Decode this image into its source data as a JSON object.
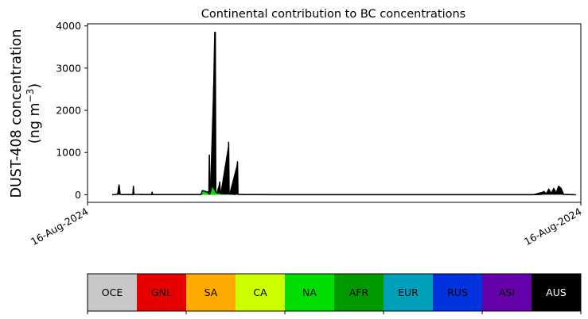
{
  "chart_data": {
    "type": "area",
    "title": "Continental contribution to BC concentrations",
    "ylabel_line1": "DUST-408 concentration",
    "ylabel_line2": "(ng m",
    "ylabel_sup": "−3",
    "ylabel_close": ")",
    "ylim": [
      -180,
      4050
    ],
    "yticks": [
      0,
      1000,
      2000,
      3000,
      4000
    ],
    "ytick_labels": [
      "0",
      "1000",
      "2000",
      "3000",
      "4000"
    ],
    "xtick_labels": [
      "16-Aug-2024",
      "16-Aug-2024"
    ],
    "grid": false,
    "x_range": [
      0,
      1
    ],
    "total_series": [
      [
        0.05,
        0
      ],
      [
        0.06,
        8
      ],
      [
        0.062,
        60
      ],
      [
        0.063,
        180
      ],
      [
        0.064,
        230
      ],
      [
        0.065,
        120
      ],
      [
        0.066,
        10
      ],
      [
        0.07,
        5
      ],
      [
        0.092,
        5
      ],
      [
        0.093,
        200
      ],
      [
        0.094,
        10
      ],
      [
        0.12,
        5
      ],
      [
        0.13,
        5
      ],
      [
        0.131,
        60
      ],
      [
        0.132,
        5
      ],
      [
        0.2,
        5
      ],
      [
        0.23,
        5
      ],
      [
        0.233,
        100
      ],
      [
        0.245,
        60
      ],
      [
        0.246,
        20
      ],
      [
        0.247,
        940
      ],
      [
        0.248,
        20
      ],
      [
        0.252,
        200
      ],
      [
        0.258,
        3850
      ],
      [
        0.259,
        3850
      ],
      [
        0.26,
        60
      ],
      [
        0.265,
        40
      ],
      [
        0.268,
        300
      ],
      [
        0.269,
        30
      ],
      [
        0.28,
        20
      ],
      [
        0.285,
        30
      ],
      [
        0.286,
        1240
      ],
      [
        0.287,
        20
      ],
      [
        0.3,
        10
      ],
      [
        0.304,
        780
      ],
      [
        0.305,
        10
      ],
      [
        0.32,
        5
      ],
      [
        0.35,
        5
      ],
      [
        0.38,
        3
      ],
      [
        0.9,
        3
      ],
      [
        0.92,
        10
      ],
      [
        0.925,
        80
      ],
      [
        0.93,
        20
      ],
      [
        0.935,
        130
      ],
      [
        0.94,
        30
      ],
      [
        0.945,
        150
      ],
      [
        0.95,
        40
      ],
      [
        0.955,
        200
      ],
      [
        0.96,
        150
      ],
      [
        0.965,
        10
      ],
      [
        0.99,
        0
      ]
    ],
    "series": [
      {
        "key": "AUS",
        "color": "#000000",
        "points": [
          [
            0.05,
            0
          ],
          [
            0.06,
            8
          ],
          [
            0.062,
            60
          ],
          [
            0.063,
            180
          ],
          [
            0.064,
            230
          ],
          [
            0.065,
            120
          ],
          [
            0.066,
            10
          ],
          [
            0.07,
            5
          ],
          [
            0.092,
            5
          ],
          [
            0.093,
            200
          ],
          [
            0.094,
            10
          ],
          [
            0.12,
            5
          ],
          [
            0.13,
            5
          ],
          [
            0.131,
            60
          ],
          [
            0.132,
            5
          ],
          [
            0.2,
            5
          ],
          [
            0.23,
            5
          ],
          [
            0.245,
            5
          ],
          [
            0.247,
            940
          ],
          [
            0.248,
            5
          ],
          [
            0.258,
            3850
          ],
          [
            0.259,
            3850
          ],
          [
            0.26,
            5
          ],
          [
            0.268,
            300
          ],
          [
            0.269,
            5
          ],
          [
            0.286,
            1240
          ],
          [
            0.287,
            5
          ],
          [
            0.304,
            780
          ],
          [
            0.305,
            5
          ],
          [
            0.32,
            5
          ],
          [
            0.35,
            5
          ],
          [
            0.38,
            3
          ],
          [
            0.9,
            3
          ],
          [
            0.925,
            80
          ],
          [
            0.93,
            20
          ],
          [
            0.935,
            130
          ],
          [
            0.94,
            30
          ],
          [
            0.945,
            150
          ],
          [
            0.95,
            40
          ],
          [
            0.955,
            200
          ],
          [
            0.96,
            150
          ],
          [
            0.965,
            10
          ],
          [
            0.99,
            0
          ]
        ]
      },
      {
        "key": "NA",
        "color": "#00dd00",
        "points": [
          [
            0.23,
            0
          ],
          [
            0.233,
            100
          ],
          [
            0.245,
            60
          ],
          [
            0.252,
            200
          ],
          [
            0.26,
            60
          ],
          [
            0.265,
            40
          ],
          [
            0.28,
            20
          ],
          [
            0.285,
            30
          ],
          [
            0.3,
            10
          ],
          [
            0.32,
            0
          ]
        ]
      },
      {
        "key": "RUS",
        "color": "#0033dd",
        "points": [
          [
            0.05,
            0
          ],
          [
            0.3,
            3
          ],
          [
            0.5,
            4
          ],
          [
            0.7,
            3
          ],
          [
            0.9,
            4
          ],
          [
            0.99,
            0
          ]
        ]
      }
    ],
    "legend_colorbar": [
      {
        "label": "OCE",
        "color": "#c8c8c8",
        "text_color": "#000000"
      },
      {
        "label": "GNL",
        "color": "#e60000",
        "text_color": "#000000"
      },
      {
        "label": "SA",
        "color": "#ffaa00",
        "text_color": "#000000"
      },
      {
        "label": "CA",
        "color": "#ccff00",
        "text_color": "#000000"
      },
      {
        "label": "NA",
        "color": "#00dd00",
        "text_color": "#000000"
      },
      {
        "label": "AFR",
        "color": "#009900",
        "text_color": "#000000"
      },
      {
        "label": "EUR",
        "color": "#00a0bb",
        "text_color": "#000000"
      },
      {
        "label": "RUS",
        "color": "#0033dd",
        "text_color": "#000000"
      },
      {
        "label": "ASI",
        "color": "#6600aa",
        "text_color": "#000000"
      },
      {
        "label": "AUS",
        "color": "#000000",
        "text_color": "#ffffff"
      }
    ]
  }
}
